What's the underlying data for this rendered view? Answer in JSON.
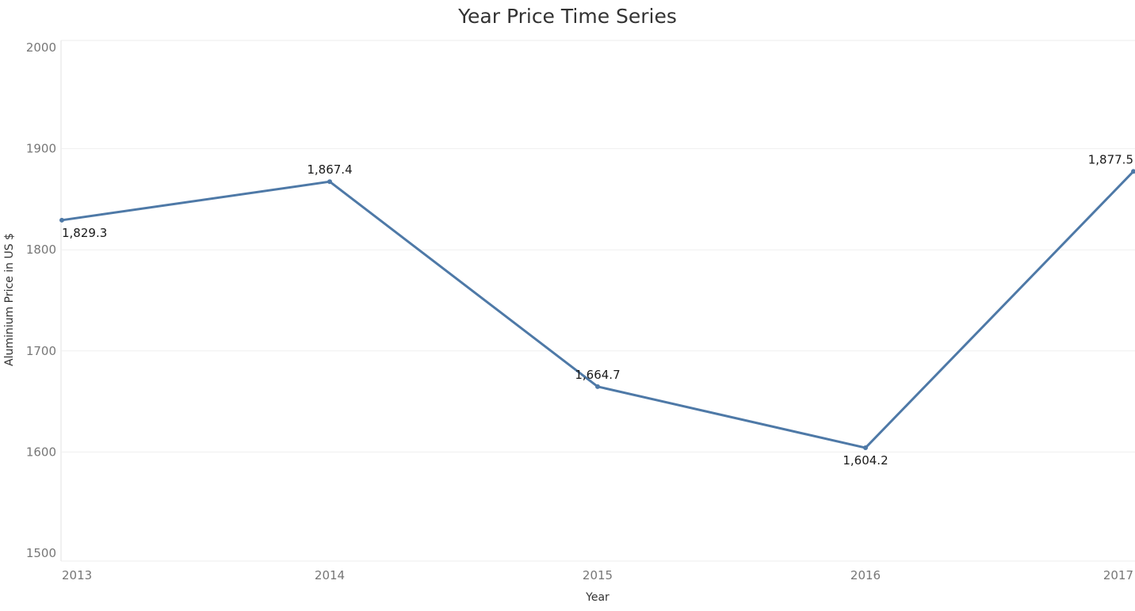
{
  "chart_data": {
    "type": "line",
    "title": "Year Price Time Series",
    "xlabel": "Year",
    "ylabel": "Aluminium Price in US $",
    "categories": [
      "2013",
      "2014",
      "2015",
      "2016",
      "2017"
    ],
    "values": [
      1829.3,
      1867.4,
      1664.7,
      1604.2,
      1877.5
    ],
    "data_labels": [
      "1,829.3",
      "1,867.4",
      "1,664.7",
      "1,604.2",
      "1,877.5"
    ],
    "ylim": [
      1500,
      2000
    ],
    "yticks": [
      "1500",
      "1600",
      "1700",
      "1800",
      "1900",
      "2000"
    ],
    "grid": true,
    "line_color": "#4e79a7"
  }
}
